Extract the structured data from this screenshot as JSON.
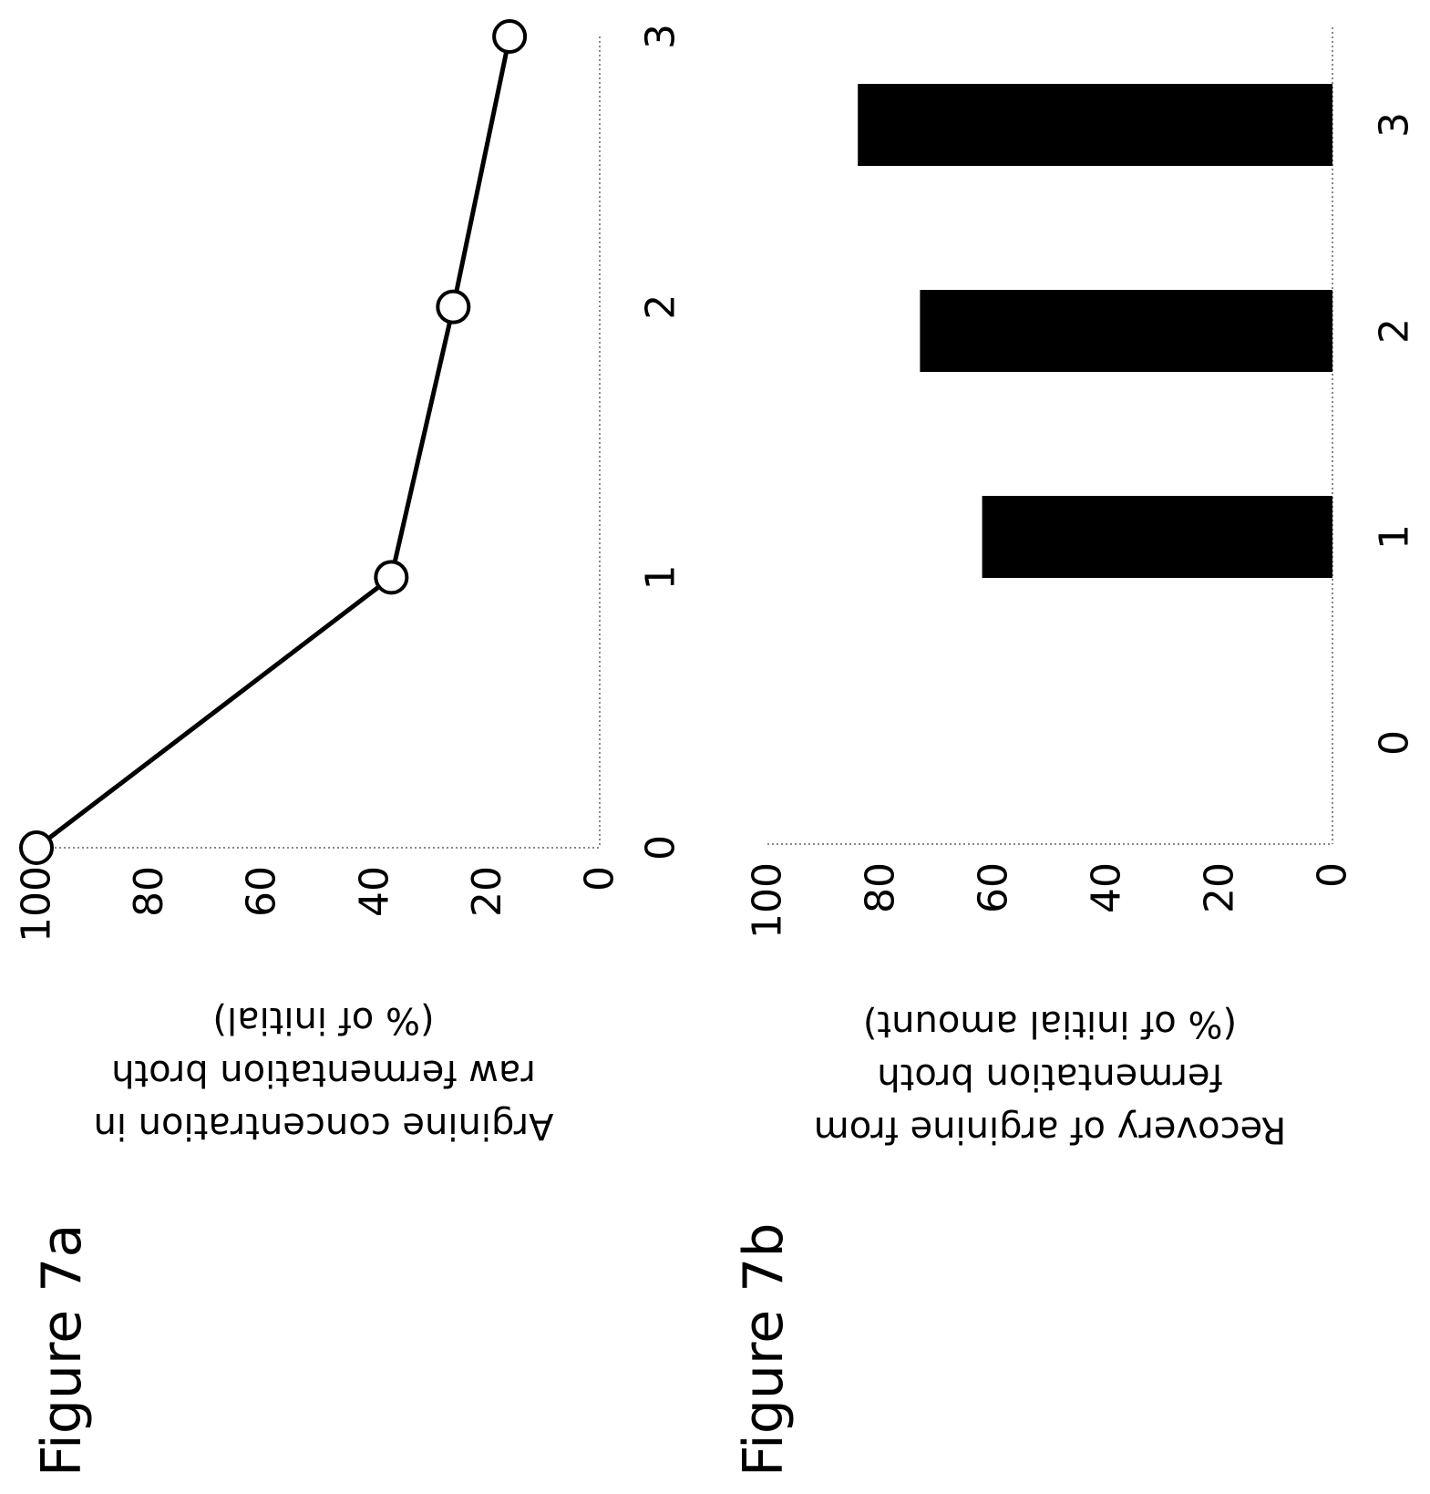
{
  "figures": [
    {
      "label": "Figure 7a"
    },
    {
      "label": "Figure 7b"
    }
  ],
  "chart_data": [
    {
      "type": "line",
      "x": [
        0,
        1,
        2,
        3
      ],
      "values": [
        100,
        37,
        26,
        16
      ],
      "marker": "open-circle",
      "title": "",
      "xlabel": "",
      "ylabel_lines": [
        "Arginine concentration in",
        "raw fermentation broth",
        "(% of initial)"
      ],
      "xlim": [
        0,
        3
      ],
      "ylim": [
        0,
        100
      ],
      "x_ticks": [
        "0",
        "1",
        "2",
        "3"
      ],
      "y_ticks": [
        "0",
        "20",
        "40",
        "60",
        "80",
        "100"
      ],
      "grid": false,
      "orientation": "rotated 180 degrees",
      "line_color": "#000000"
    },
    {
      "type": "bar",
      "categories": [
        "0",
        "1",
        "2",
        "3"
      ],
      "values": [
        0,
        62,
        73,
        84
      ],
      "title": "",
      "xlabel": "",
      "ylabel_lines": [
        "Recovery of arginine from",
        "fermentation broth",
        "(% of initial amount)"
      ],
      "ylim": [
        0,
        100
      ],
      "y_ticks": [
        "0",
        "20",
        "40",
        "60",
        "80",
        "100"
      ],
      "grid": false,
      "orientation": "rotated 90 degrees",
      "bar_color": "#000000"
    }
  ]
}
